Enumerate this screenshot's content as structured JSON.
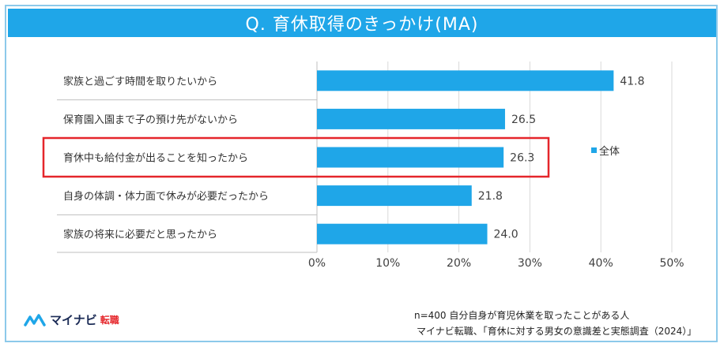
{
  "title": "Q. 育休取得のきっかけ(MA)",
  "legend_label": "全体",
  "colors": {
    "bar": "#1fa6e8",
    "title_bg": "#1fa6e8",
    "highlight": "#e5262b"
  },
  "footnote": {
    "sample": "n=400 自分自身が育児休業を取ったことがある人",
    "source": "マイナビ転職、「育休に対する男女の意識差と実態調査（2024）」"
  },
  "brand": {
    "name": "マイナビ",
    "sub": "転職",
    "icon": "mynavi-logo-icon"
  },
  "chart_data": {
    "type": "bar",
    "orientation": "horizontal",
    "categories": [
      "家族と過ごす時間を取りたいから",
      "保育園入園まで子の預け先がないから",
      "育休中も給付金が出ることを知ったから",
      "自身の体調・体力面で休みが必要だったから",
      "家族の将来に必要だと思ったから"
    ],
    "series": [
      {
        "name": "全体",
        "values": [
          41.8,
          26.5,
          26.3,
          21.8,
          24.0
        ]
      }
    ],
    "value_labels": [
      "41.8",
      "26.5",
      "26.3",
      "21.8",
      "24.0"
    ],
    "xlim": [
      0,
      50
    ],
    "xticks": [
      "0%",
      "10%",
      "20%",
      "30%",
      "40%",
      "50%"
    ],
    "grid": true,
    "legend_position": "right",
    "highlighted_category": 2
  }
}
